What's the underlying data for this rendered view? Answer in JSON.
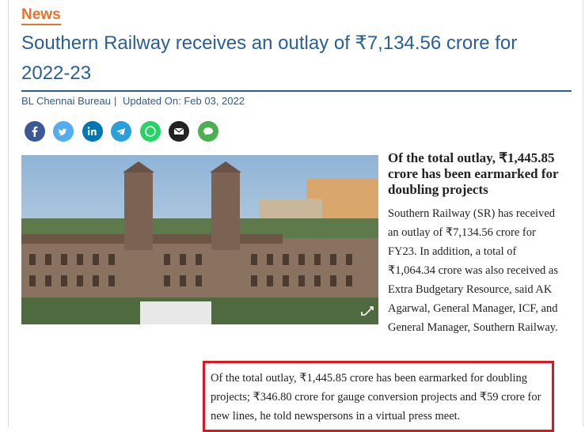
{
  "section": "News",
  "article": {
    "title": "Southern Railway receives an outlay of ₹7,134.56 crore for 2022-23",
    "byline": "BL Chennai Bureau",
    "separator": "|",
    "updated": "Updated On: Feb 03, 2022",
    "subheading": "Of the total outlay, ₹1,445.85 crore has been earmarked for doubling projects",
    "paragraphs": [
      "Southern Railway (SR) has received an outlay of ₹7,134.56 crore for FY23. In addition, a total of ₹1,064.34 crore was also received as Extra Budgetary Resource, said AK Agarwal, General Manager, ICF, and General Manager, Southern Railway.",
      "Of the total outlay, ₹1,445.85 crore has been earmarked for doubling projects; ₹346.80 crore for gauge conversion projects and ₹59 crore for new lines, he told newspersons in a virtual press meet."
    ]
  }
}
